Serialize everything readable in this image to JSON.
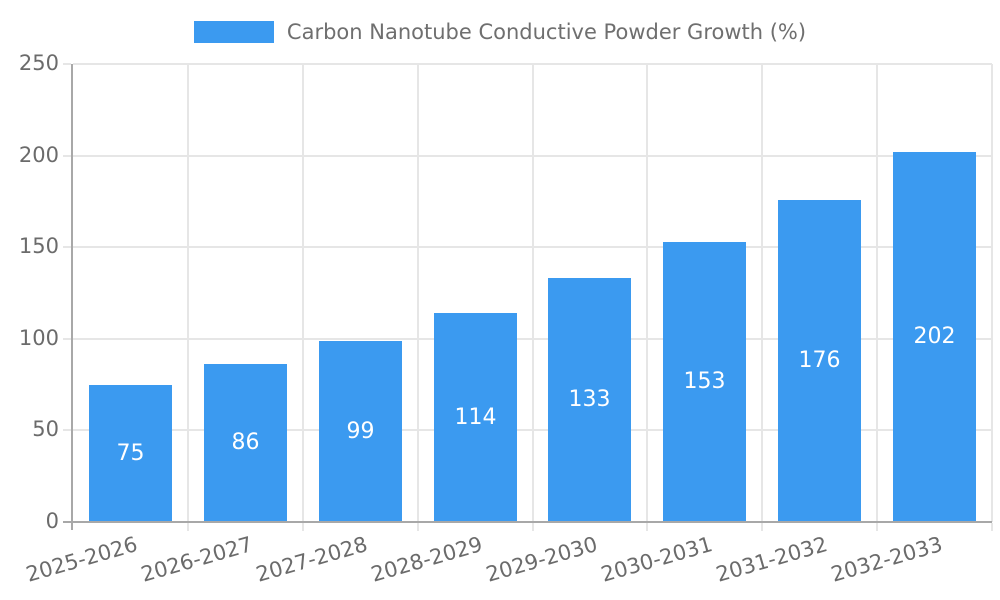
{
  "legend": {
    "label": "Carbon Nanotube Conductive Powder Growth (%)"
  },
  "chart_data": {
    "type": "bar",
    "title": "Carbon Nanotube Conductive Powder Growth (%)",
    "categories": [
      "2025-2026",
      "2026-2027",
      "2027-2028",
      "2028-2029",
      "2029-2030",
      "2030-2031",
      "2031-2032",
      "2032-2033"
    ],
    "series": [
      {
        "name": "Carbon Nanotube Conductive Powder Growth (%)",
        "values": [
          75,
          86,
          99,
          114,
          133,
          153,
          176,
          202
        ]
      }
    ],
    "value_labels": [
      "75",
      "86",
      "99",
      "114",
      "133",
      "153",
      "176",
      "202"
    ],
    "xlabel": "",
    "ylabel": "",
    "ylim": [
      0,
      250
    ],
    "yticks": [
      0,
      50,
      100,
      150,
      200,
      250
    ],
    "grid": true,
    "vertical_gridlines": true,
    "legend_position": "top-center",
    "x_tick_rotation_deg": -16,
    "colors": {
      "bar": "#3b9af0",
      "value_label": "#ffffff",
      "tick_label": "#6b6b6b",
      "legend_text": "#6f6f6f",
      "grid": "#e6e6e6",
      "axis": "#a8a8a8",
      "background": "#ffffff"
    }
  }
}
